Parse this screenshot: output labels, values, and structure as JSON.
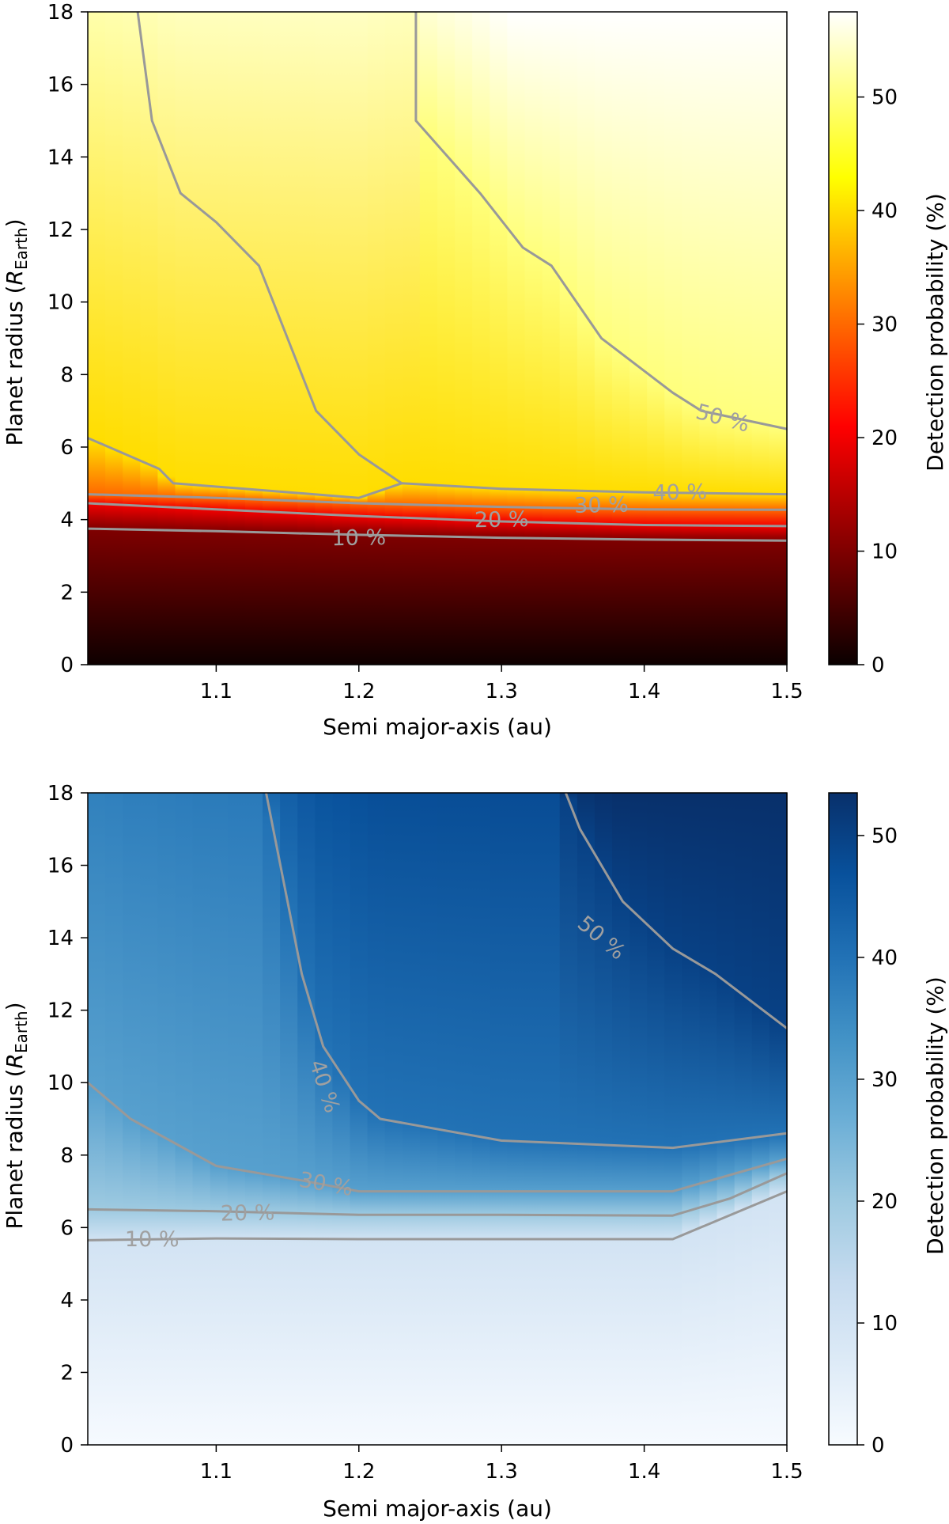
{
  "chart_data": [
    {
      "type": "heatmap",
      "colormap": "hot",
      "xlabel": "Semi major-axis (au)",
      "ylabel": "Planet radius (",
      "ylabel_symbol": "R",
      "ylabel_sub": "Earth",
      "ylabel_close": ")",
      "colorbar_label": "Detection probability (%)",
      "xlim": [
        1.01,
        1.5
      ],
      "ylim": [
        0,
        18
      ],
      "zlim": [
        0,
        57.5
      ],
      "xticks": [
        1.1,
        1.2,
        1.3,
        1.4,
        1.5
      ],
      "xtick_labels": [
        "1.1",
        "1.2",
        "1.3",
        "1.4",
        "1.5"
      ],
      "yticks": [
        0,
        2,
        4,
        6,
        8,
        10,
        12,
        14,
        16,
        18
      ],
      "ytick_labels": [
        "0",
        "2",
        "4",
        "6",
        "8",
        "10",
        "12",
        "14",
        "16",
        "18"
      ],
      "cticks": [
        0,
        10,
        20,
        30,
        40,
        50
      ],
      "ctick_labels": [
        "0",
        "10",
        "20",
        "30",
        "40",
        "50"
      ],
      "contour_color": "#999999",
      "contours": [
        {
          "level": 10,
          "label": "10 %",
          "label_at": [
            1.2,
            3.5
          ],
          "label_angle": -1,
          "points": [
            [
              1.01,
              3.75
            ],
            [
              1.1,
              3.68
            ],
            [
              1.2,
              3.58
            ],
            [
              1.3,
              3.5
            ],
            [
              1.4,
              3.45
            ],
            [
              1.5,
              3.42
            ]
          ]
        },
        {
          "level": 20,
          "label": "20 %",
          "label_at": [
            1.3,
            4.0
          ],
          "label_angle": -1,
          "points": [
            [
              1.01,
              4.45
            ],
            [
              1.1,
              4.28
            ],
            [
              1.2,
              4.1
            ],
            [
              1.3,
              3.95
            ],
            [
              1.4,
              3.85
            ],
            [
              1.5,
              3.82
            ]
          ]
        },
        {
          "level": 30,
          "label": "30 %",
          "label_at": [
            1.37,
            4.4
          ],
          "label_angle": -1,
          "points": [
            [
              1.01,
              4.7
            ],
            [
              1.1,
              4.6
            ],
            [
              1.2,
              4.45
            ],
            [
              1.3,
              4.35
            ],
            [
              1.4,
              4.28
            ],
            [
              1.5,
              4.27
            ]
          ]
        },
        {
          "level": 40,
          "label": "40 %",
          "label_at": [
            1.425,
            4.75
          ],
          "label_angle": -1,
          "points": [
            [
              1.01,
              6.25
            ],
            [
              1.06,
              5.4
            ],
            [
              1.07,
              5.0
            ],
            [
              1.12,
              4.85
            ],
            [
              1.2,
              4.6
            ],
            [
              1.23,
              5.0
            ],
            [
              1.3,
              4.85
            ],
            [
              1.4,
              4.75
            ],
            [
              1.5,
              4.7
            ]
          ]
        },
        {
          "level": 40,
          "label": "",
          "label_at": null,
          "label_angle": 0,
          "points": [
            [
              1.045,
              18
            ],
            [
              1.055,
              15
            ],
            [
              1.075,
              13
            ],
            [
              1.1,
              12.2
            ],
            [
              1.13,
              11.0
            ],
            [
              1.15,
              9.0
            ],
            [
              1.17,
              7.0
            ],
            [
              1.2,
              5.8
            ],
            [
              1.215,
              5.4
            ],
            [
              1.23,
              5.0
            ]
          ]
        },
        {
          "level": 50,
          "label": "50 %",
          "label_at": [
            1.455,
            6.8
          ],
          "label_angle": 15,
          "points": [
            [
              1.24,
              18
            ],
            [
              1.24,
              15
            ],
            [
              1.285,
              13
            ],
            [
              1.315,
              11.5
            ],
            [
              1.335,
              11.0
            ],
            [
              1.37,
              9.0
            ],
            [
              1.42,
              7.5
            ],
            [
              1.44,
              7.0
            ],
            [
              1.5,
              6.5
            ]
          ]
        }
      ]
    },
    {
      "type": "heatmap",
      "colormap": "blues",
      "xlabel": "Semi major-axis (au)",
      "ylabel": "Planet radius (",
      "ylabel_symbol": "R",
      "ylabel_sub": "Earth",
      "ylabel_close": ")",
      "colorbar_label": "Detection probability (%)",
      "xlim": [
        1.01,
        1.5
      ],
      "ylim": [
        0,
        18
      ],
      "zlim": [
        0,
        53.5
      ],
      "xticks": [
        1.1,
        1.2,
        1.3,
        1.4,
        1.5
      ],
      "xtick_labels": [
        "1.1",
        "1.2",
        "1.3",
        "1.4",
        "1.5"
      ],
      "yticks": [
        0,
        2,
        4,
        6,
        8,
        10,
        12,
        14,
        16,
        18
      ],
      "ytick_labels": [
        "0",
        "2",
        "4",
        "6",
        "8",
        "10",
        "12",
        "14",
        "16",
        "18"
      ],
      "cticks": [
        0,
        10,
        20,
        30,
        40,
        50
      ],
      "ctick_labels": [
        "0",
        "10",
        "20",
        "30",
        "40",
        "50"
      ],
      "contour_color": "#999999",
      "contours": [
        {
          "level": 10,
          "label": "10 %",
          "label_at": [
            1.055,
            5.68
          ],
          "label_angle": 0,
          "points": [
            [
              1.01,
              5.65
            ],
            [
              1.1,
              5.7
            ],
            [
              1.2,
              5.68
            ],
            [
              1.3,
              5.68
            ],
            [
              1.42,
              5.68
            ],
            [
              1.5,
              7.0
            ]
          ]
        },
        {
          "level": 20,
          "label": "20 %",
          "label_at": [
            1.122,
            6.4
          ],
          "label_angle": -1,
          "points": [
            [
              1.01,
              6.5
            ],
            [
              1.1,
              6.45
            ],
            [
              1.2,
              6.35
            ],
            [
              1.3,
              6.35
            ],
            [
              1.42,
              6.33
            ],
            [
              1.46,
              6.8
            ],
            [
              1.5,
              7.5
            ]
          ]
        },
        {
          "level": 30,
          "label": "30 %",
          "label_at": [
            1.177,
            7.2
          ],
          "label_angle": 10,
          "points": [
            [
              1.01,
              10.0
            ],
            [
              1.04,
              9.0
            ],
            [
              1.1,
              7.7
            ],
            [
              1.16,
              7.3
            ],
            [
              1.2,
              7.0
            ],
            [
              1.3,
              7.0
            ],
            [
              1.42,
              7.0
            ],
            [
              1.46,
              7.45
            ],
            [
              1.5,
              7.9
            ]
          ]
        },
        {
          "level": 40,
          "label": "40 %",
          "label_at": [
            1.176,
            9.9
          ],
          "label_angle": 72,
          "points": [
            [
              1.135,
              18
            ],
            [
              1.14,
              17
            ],
            [
              1.15,
              15
            ],
            [
              1.16,
              13
            ],
            [
              1.175,
              11
            ],
            [
              1.2,
              9.5
            ],
            [
              1.215,
              9.0
            ],
            [
              1.3,
              8.4
            ],
            [
              1.42,
              8.2
            ],
            [
              1.5,
              8.6
            ]
          ]
        },
        {
          "level": 50,
          "label": "50 %",
          "label_at": [
            1.37,
            14.0
          ],
          "label_angle": 40,
          "points": [
            [
              1.345,
              18
            ],
            [
              1.355,
              17
            ],
            [
              1.385,
              15
            ],
            [
              1.42,
              13.7
            ],
            [
              1.45,
              13
            ],
            [
              1.5,
              11.5
            ]
          ]
        }
      ]
    }
  ]
}
